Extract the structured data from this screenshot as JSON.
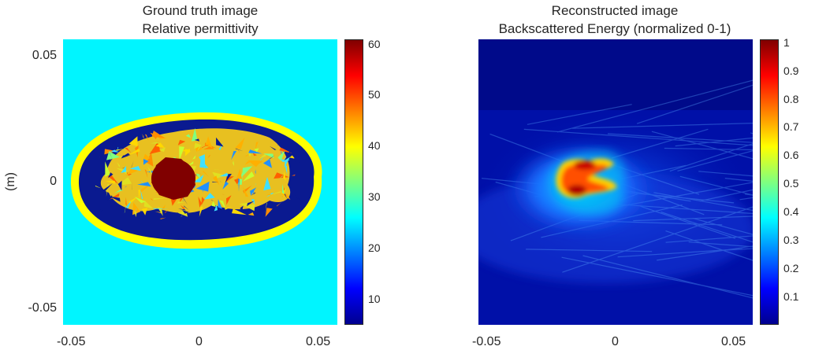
{
  "chart_data": [
    {
      "type": "heatmap",
      "title": "Ground truth image",
      "subtitle": "Relative permittivity",
      "xlabel": "",
      "ylabel": "(m)",
      "xticks": [
        "-0.05",
        "0",
        "0.05"
      ],
      "yticks": [
        "0.05",
        "0",
        "-0.05"
      ],
      "xlim": [
        -0.056,
        0.056
      ],
      "ylim": [
        -0.056,
        0.056
      ],
      "colormap": "jet",
      "colorbar": {
        "range": [
          5,
          60
        ],
        "ticks": [
          "60",
          "50",
          "40",
          "30",
          "20",
          "10"
        ]
      },
      "regions": [
        {
          "name": "background",
          "value": 24
        },
        {
          "name": "skin layer",
          "value": 38
        },
        {
          "name": "fat",
          "value": 7
        },
        {
          "name": "fibroglandular tissue",
          "value_range": [
            20,
            50
          ]
        },
        {
          "name": "tumor",
          "value": 60
        }
      ]
    },
    {
      "type": "heatmap",
      "title": "Reconstructed image",
      "subtitle": "Backscattered Energy (normalized 0-1)",
      "xticks": [
        "-0.05",
        "0",
        "0.05"
      ],
      "xlim": [
        -0.056,
        0.056
      ],
      "ylim": [
        -0.056,
        0.056
      ],
      "colormap": "jet",
      "colorbar": {
        "range": [
          0,
          1
        ],
        "ticks": [
          "1",
          "0.9",
          "0.8",
          "0.7",
          "0.6",
          "0.5",
          "0.4",
          "0.3",
          "0.2",
          "0.1"
        ]
      },
      "peak": {
        "x": -0.013,
        "y": 0.003,
        "value": 1.0
      }
    }
  ]
}
